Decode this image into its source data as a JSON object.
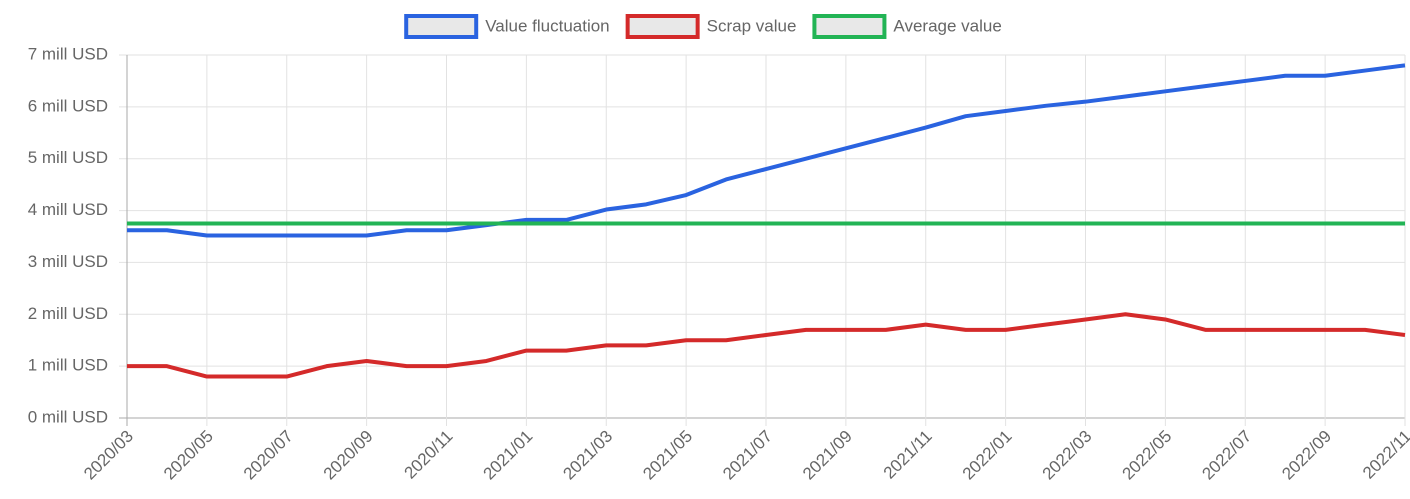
{
  "chart_data": {
    "type": "line",
    "categories": [
      "2020/03",
      null,
      "2020/05",
      null,
      "2020/07",
      null,
      "2020/09",
      null,
      "2020/11",
      null,
      "2021/01",
      null,
      "2021/03",
      null,
      "2021/05",
      null,
      "2021/07",
      null,
      "2021/09",
      null,
      "2021/11",
      null,
      "2022/01",
      null,
      "2022/03",
      null,
      "2022/05",
      null,
      "2022/07",
      null,
      "2022/09",
      null,
      "2022/11"
    ],
    "series": [
      {
        "name": "Value fluctuation",
        "color": "#2a63e0",
        "values": [
          3.62,
          3.62,
          3.52,
          3.52,
          3.52,
          3.52,
          3.52,
          3.62,
          3.62,
          3.72,
          3.82,
          3.82,
          4.02,
          4.12,
          4.3,
          4.6,
          4.8,
          5.0,
          5.2,
          5.4,
          5.6,
          5.82,
          5.92,
          6.02,
          6.1,
          6.2,
          6.3,
          6.4,
          6.5,
          6.6,
          6.6,
          6.7,
          6.8
        ]
      },
      {
        "name": "Scrap value",
        "color": "#d42a2a",
        "values": [
          1.0,
          1.0,
          0.8,
          0.8,
          0.8,
          1.0,
          1.1,
          1.0,
          1.0,
          1.1,
          1.3,
          1.3,
          1.4,
          1.4,
          1.5,
          1.5,
          1.6,
          1.7,
          1.7,
          1.7,
          1.8,
          1.7,
          1.7,
          1.8,
          1.9,
          2.0,
          1.9,
          1.7,
          1.7,
          1.7,
          1.7,
          1.7,
          1.6
        ]
      },
      {
        "name": "Average value",
        "color": "#22b455",
        "values": [
          3.75,
          3.75,
          3.75,
          3.75,
          3.75,
          3.75,
          3.75,
          3.75,
          3.75,
          3.75,
          3.75,
          3.75,
          3.75,
          3.75,
          3.75,
          3.75,
          3.75,
          3.75,
          3.75,
          3.75,
          3.75,
          3.75,
          3.75,
          3.75,
          3.75,
          3.75,
          3.75,
          3.75,
          3.75,
          3.75,
          3.75,
          3.75,
          3.75
        ]
      }
    ],
    "ylim": [
      0,
      7
    ],
    "yticks": [
      {
        "value": 0,
        "label": "0 mill USD"
      },
      {
        "value": 1,
        "label": "1 mill USD"
      },
      {
        "value": 2,
        "label": "2 mill USD"
      },
      {
        "value": 3,
        "label": "3 mill USD"
      },
      {
        "value": 4,
        "label": "4 mill USD"
      },
      {
        "value": 5,
        "label": "5 mill USD"
      },
      {
        "value": 6,
        "label": "6 mill USD"
      },
      {
        "value": 7,
        "label": "7 mill USD"
      }
    ],
    "grid": true,
    "legend": "top"
  }
}
